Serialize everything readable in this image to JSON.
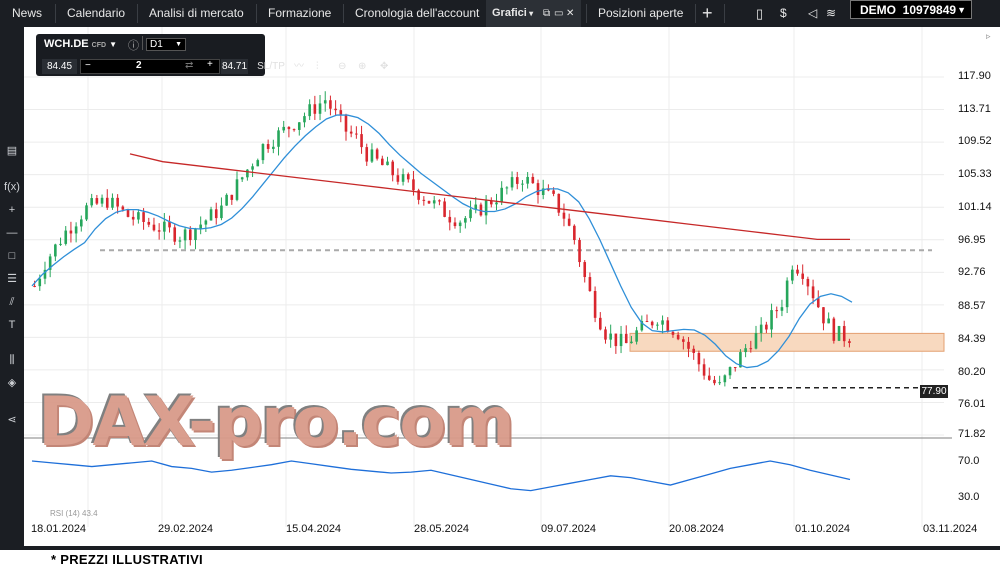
{
  "nav": {
    "items": [
      {
        "label": "News",
        "x": 0
      },
      {
        "label": "Calendario",
        "x": 0
      },
      {
        "label": "Analisi di mercato",
        "x": 0
      },
      {
        "label": "Formazione",
        "x": 0
      },
      {
        "label": "Cronologia dell'account",
        "x": 0
      }
    ],
    "grafici": "Grafici",
    "posizioni": "Posizioni aperte",
    "account": "DEMO  10979849"
  },
  "instrument": {
    "symbol": "WCH.DE",
    "type": "CFD",
    "timeframe": "D1",
    "sell_price": "84.45",
    "buy_price": "84.71",
    "quantity": "2",
    "sltp": "SL/TP"
  },
  "y_axis": [
    "117.90",
    "113.71",
    "109.52",
    "105.33",
    "101.14",
    "96.95",
    "92.76",
    "88.57",
    "84.39",
    "80.20",
    "76.01",
    "71.82",
    "70.0",
    "30.0"
  ],
  "x_axis": [
    "18.01.2024",
    "29.02.2024",
    "15.04.2024",
    "28.05.2024",
    "09.07.2024",
    "20.08.2024",
    "01.10.2024",
    "03.11.2024"
  ],
  "level_badge": "77.90",
  "rsi_label": "RSI (14) 43.4",
  "watermark": "DAX-pro.com",
  "footnote": "* PREZZI ILLUSTRATIVI",
  "colors": {
    "up": "#26a65b",
    "down": "#d9262e",
    "ma_long": "#c62828",
    "ma_short": "#2f8fd8",
    "rsi": "#1e6fd9",
    "zone": "#f8d9bf"
  },
  "chart_data": {
    "type": "line",
    "title": "",
    "series": [
      {
        "values": [
          91,
          94,
          96,
          98,
          99.5,
          101,
          101.5,
          102,
          101,
          100,
          99.5,
          99,
          98.5,
          98,
          97.5,
          98,
          99,
          100,
          101,
          103,
          105,
          107,
          109,
          110,
          111,
          112,
          113,
          114,
          115,
          113,
          111,
          110,
          108,
          107,
          106,
          105,
          104,
          103,
          102,
          101,
          100,
          99.5,
          100,
          101,
          102,
          103,
          104,
          105,
          104,
          103,
          102,
          100,
          97,
          92,
          88,
          85,
          84,
          83.5,
          85,
          86,
          87,
          86,
          85,
          83,
          81,
          79,
          78,
          80,
          82,
          84,
          85,
          87,
          89,
          94,
          93,
          90,
          87,
          85,
          84.5
        ]
      },
      {
        "values": [
          108,
          107,
          106.5,
          106,
          105.5,
          105,
          104.5,
          104,
          103.5,
          103,
          102.5,
          102,
          101.5,
          101,
          100.5,
          100,
          99.5,
          99,
          98.5,
          98,
          97.5,
          97,
          97
        ]
      },
      {
        "values": [
          70,
          68,
          66,
          64,
          66,
          68,
          70,
          64,
          62,
          58,
          60,
          63,
          66,
          70,
          67,
          64,
          61,
          59,
          57,
          58,
          60,
          55,
          50,
          45,
          40,
          38,
          42,
          46,
          50,
          54,
          52,
          48,
          44,
          50,
          56,
          62,
          66,
          70,
          66,
          60,
          55,
          50
        ]
      }
    ],
    "y_ticks": [
      117.9,
      113.71,
      109.52,
      105.33,
      101.14,
      96.95,
      92.76,
      88.57,
      84.39,
      80.2,
      76.01,
      71.82
    ],
    "ylim": [
      71.82,
      117.9
    ],
    "rsi_ticks": [
      70.0,
      30.0
    ],
    "x_ticks": [
      "18.01.2024",
      "29.02.2024",
      "15.04.2024",
      "28.05.2024",
      "09.07.2024",
      "20.08.2024",
      "01.10.2024",
      "03.11.2024"
    ],
    "levels": {
      "resistance": 95.6,
      "support_zone": [
        82.6,
        84.9
      ],
      "low": 77.9
    },
    "grid": true
  }
}
